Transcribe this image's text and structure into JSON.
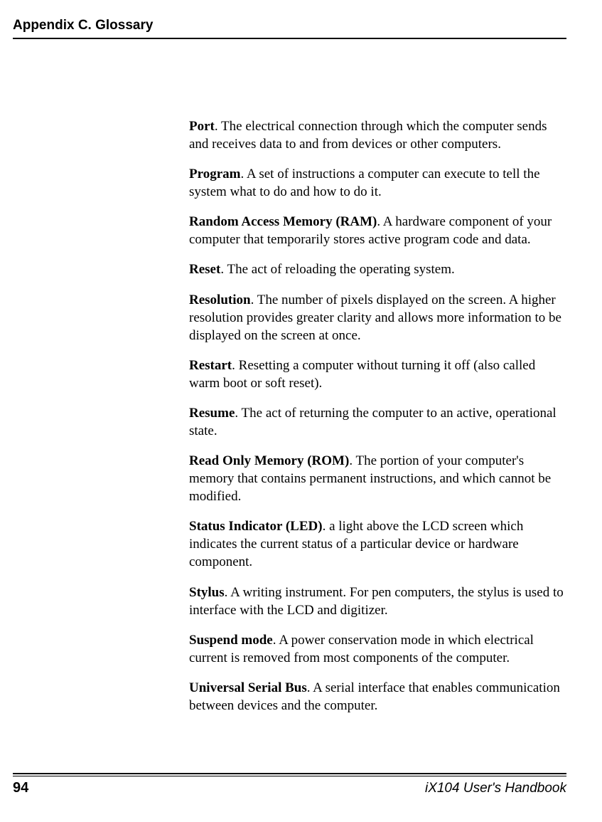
{
  "header": {
    "title": "Appendix C. Glossary"
  },
  "entries": [
    {
      "term": "Port",
      "definition": ". The electrical connection through which the computer sends and receives data to and from devices or other computers."
    },
    {
      "term": "Program",
      "definition": ". A set of instructions a computer can execute to tell the system what to do and how to do it."
    },
    {
      "term": "Random Access Memory (RAM)",
      "definition": ". A hardware component of your computer that temporarily stores active program code and data."
    },
    {
      "term": "Reset",
      "definition": ". The act of reloading the operating system."
    },
    {
      "term": "Resolution",
      "definition": ". The number of pixels displayed on the screen. A higher resolution provides greater clarity and allows more information to be displayed on the screen at once."
    },
    {
      "term": "Restart",
      "definition": ". Resetting a computer without turning it off (also called warm boot or soft reset)."
    },
    {
      "term": "Resume",
      "definition": ". The act of returning the computer to an active, operational state."
    },
    {
      "term": "Read Only Memory (ROM)",
      "definition": ". The portion of your computer's memory that contains permanent instructions, and which cannot be modified."
    },
    {
      "term": "Status Indicator (LED)",
      "definition": ". a light above the LCD screen which indicates the current status of a particular device or hardware component."
    },
    {
      "term": "Stylus",
      "definition": ". A writing instrument. For pen computers, the stylus is used to interface with the LCD and digitizer."
    },
    {
      "term": "Suspend mode",
      "definition": ". A power conservation mode in which electrical current is removed from most components of the computer."
    },
    {
      "term": "Universal Serial Bus",
      "definition": ". A serial interface that enables communication between devices and the computer."
    }
  ],
  "footer": {
    "page_number": "94",
    "book_title": "iX104 User's Handbook"
  }
}
